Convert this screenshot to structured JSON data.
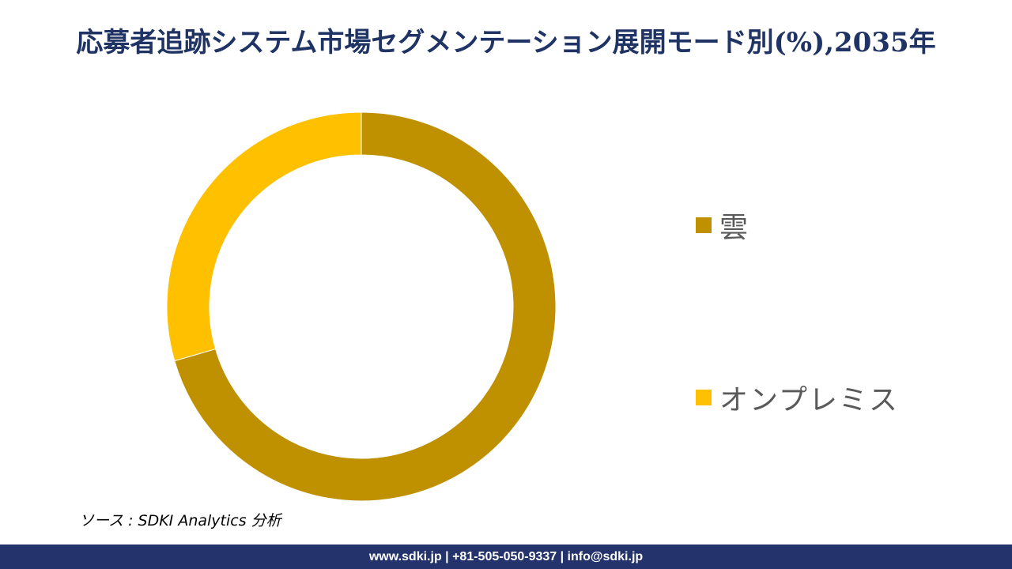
{
  "title": "応募者追跡システム市場セグメンテーション展開モード別(%),2035年",
  "source": "ソース : SDKI Analytics 分析",
  "footer": "www.sdki.jp | +81-505-050-9337 | info@sdki.jp",
  "colors": {
    "title": "#1f3464",
    "footer_bg": "#24336b",
    "legend_text": "#595959"
  },
  "chart_data": {
    "type": "pie",
    "variant": "donut",
    "title": "応募者追跡システム市場セグメンテーション展開モード別(%),2035年",
    "categories": [
      "雲",
      "オンプレミス"
    ],
    "values": [
      70.5,
      29.5
    ],
    "colors": [
      "#bf9000",
      "#ffc000"
    ],
    "legend_position": "right",
    "start_angle_deg": 0,
    "direction": "clockwise"
  }
}
